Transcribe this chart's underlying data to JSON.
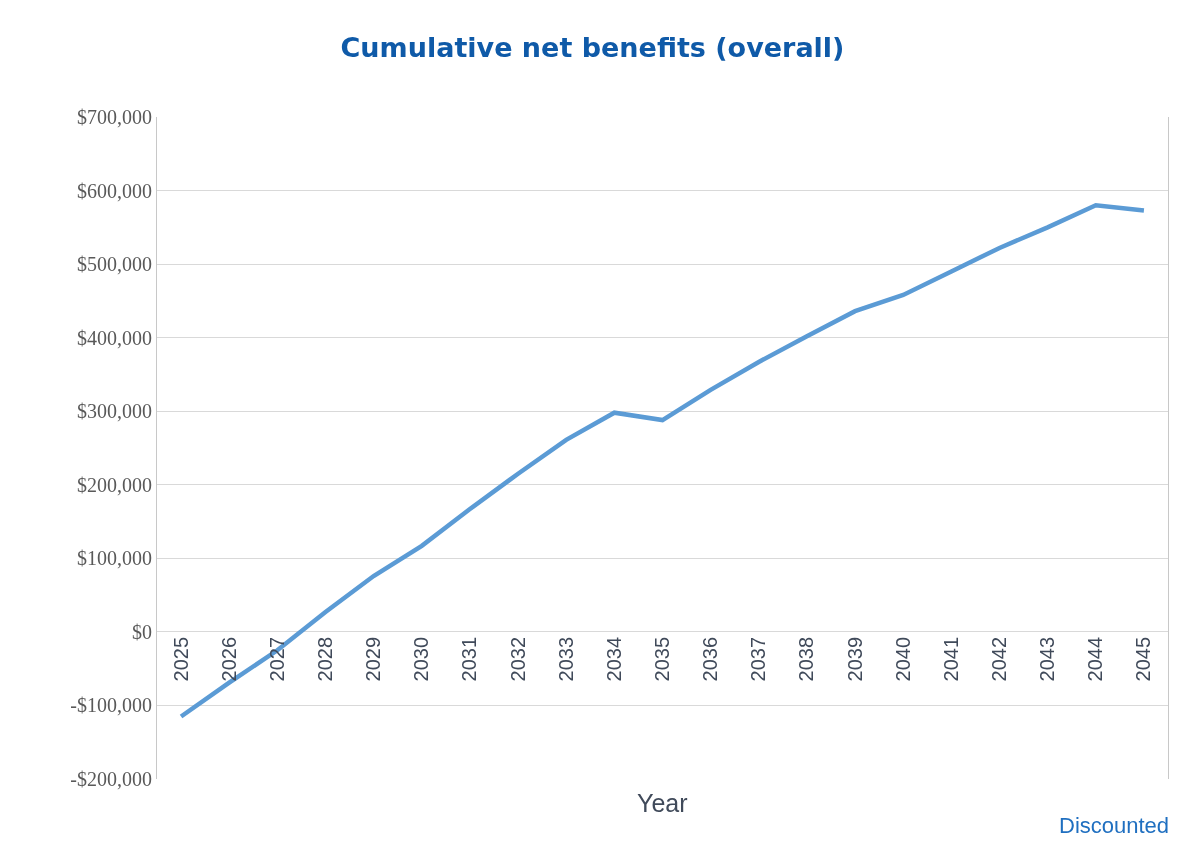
{
  "chart_data": {
    "type": "line",
    "title": "Cumulative net benefits (overall)",
    "xlabel": "Year",
    "categories": [
      "2025",
      "2026",
      "2027",
      "2028",
      "2029",
      "2030",
      "2031",
      "2032",
      "2033",
      "2034",
      "2035",
      "2036",
      "2037",
      "2038",
      "2039",
      "2040",
      "2041",
      "2042",
      "2043",
      "2044",
      "2045"
    ],
    "values": [
      -115000,
      -69000,
      -25000,
      27000,
      76000,
      117000,
      167000,
      215000,
      261000,
      298000,
      288000,
      329000,
      367000,
      402000,
      436000,
      458000,
      490000,
      522000,
      550000,
      580000,
      573000
    ],
    "color": "#5b9bd5",
    "marker": "none",
    "line_style": "solid",
    "ylim": [
      -200000,
      700000
    ],
    "yticks": [
      {
        "value": -200000,
        "label": "-$200,000"
      },
      {
        "value": -100000,
        "label": "-$100,000"
      },
      {
        "value": 0,
        "label": "$0"
      },
      {
        "value": 100000,
        "label": "$100,000"
      },
      {
        "value": 200000,
        "label": "$200,000"
      },
      {
        "value": 300000,
        "label": "$300,000"
      },
      {
        "value": 400000,
        "label": "$400,000"
      },
      {
        "value": 500000,
        "label": "$500,000"
      },
      {
        "value": 600000,
        "label": "$600,000"
      },
      {
        "value": 700000,
        "label": "$700,000"
      }
    ],
    "grid": "y",
    "annotations": [
      "Discounted"
    ]
  }
}
